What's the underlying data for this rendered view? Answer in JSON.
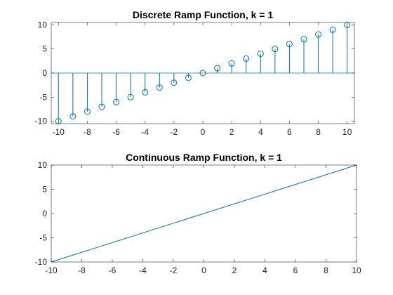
{
  "chart_data": [
    {
      "type": "stem",
      "title": "Discrete Ramp Function, k = 1",
      "xlabel": "",
      "ylabel": "",
      "xlim": [
        -10.5,
        10.5
      ],
      "ylim": [
        -10.5,
        10.5
      ],
      "xticks": [
        -10,
        -8,
        -6,
        -4,
        -2,
        0,
        2,
        4,
        6,
        8,
        10
      ],
      "yticks": [
        -10,
        -5,
        0,
        5,
        10
      ],
      "x": [
        -10,
        -9,
        -8,
        -7,
        -6,
        -5,
        -4,
        -3,
        -2,
        -1,
        0,
        1,
        2,
        3,
        4,
        5,
        6,
        7,
        8,
        9,
        10
      ],
      "y": [
        -10,
        -9,
        -8,
        -7,
        -6,
        -5,
        -4,
        -3,
        -2,
        -1,
        0,
        1,
        2,
        3,
        4,
        5,
        6,
        7,
        8,
        9,
        10
      ],
      "marker": "open-circle",
      "baseline": true,
      "grid": false,
      "color": "#0072BD"
    },
    {
      "type": "line",
      "title": "Continuous Ramp Function, k = 1",
      "xlabel": "",
      "ylabel": "",
      "xlim": [
        -10,
        10
      ],
      "ylim": [
        -10,
        10
      ],
      "xticks": [
        -10,
        -8,
        -6,
        -4,
        -2,
        0,
        2,
        4,
        6,
        8,
        10
      ],
      "yticks": [
        -10,
        -5,
        0,
        5,
        10
      ],
      "x": [
        -10,
        10
      ],
      "y": [
        -10,
        10
      ],
      "grid": false,
      "color": "#0072BD"
    }
  ]
}
